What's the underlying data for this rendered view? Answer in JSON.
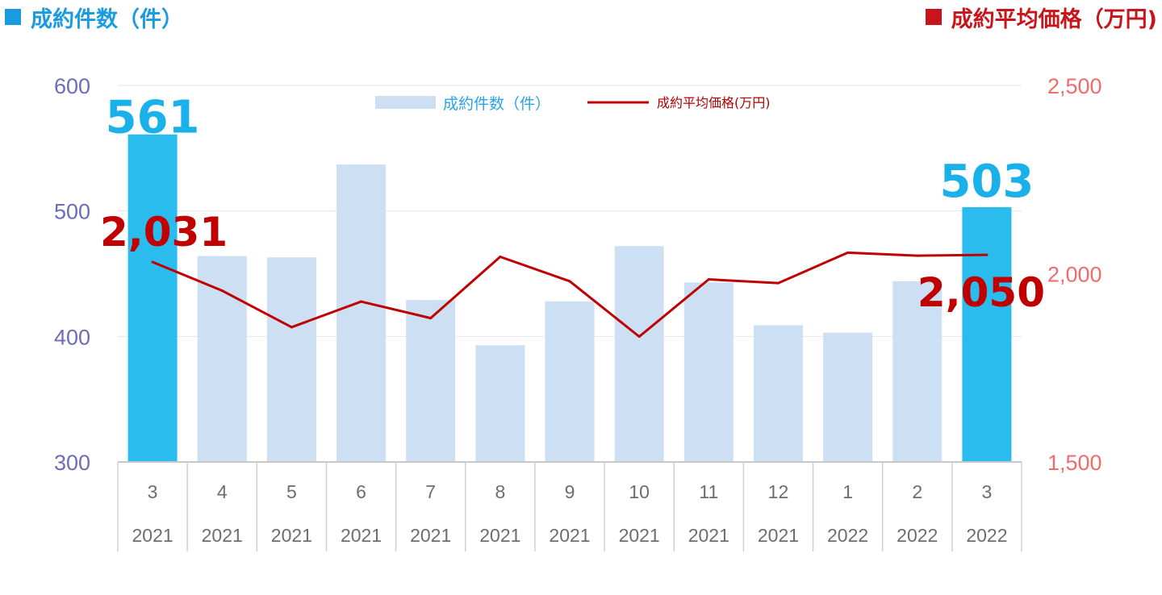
{
  "titles": {
    "left": "成約件数（件）",
    "right": "成約平均価格（万円)"
  },
  "chart_data": {
    "type": "bar",
    "categories": [
      {
        "month": "3",
        "year": "2021"
      },
      {
        "month": "4",
        "year": "2021"
      },
      {
        "month": "5",
        "year": "2021"
      },
      {
        "month": "6",
        "year": "2021"
      },
      {
        "month": "7",
        "year": "2021"
      },
      {
        "month": "8",
        "year": "2021"
      },
      {
        "month": "9",
        "year": "2021"
      },
      {
        "month": "10",
        "year": "2021"
      },
      {
        "month": "11",
        "year": "2021"
      },
      {
        "month": "12",
        "year": "2021"
      },
      {
        "month": "1",
        "year": "2022"
      },
      {
        "month": "2",
        "year": "2022"
      },
      {
        "month": "3",
        "year": "2022"
      }
    ],
    "series": [
      {
        "name": "成約件数（件）",
        "type": "bar",
        "axis": "left",
        "values": [
          561,
          464,
          463,
          537,
          429,
          393,
          428,
          472,
          443,
          409,
          403,
          444,
          503
        ],
        "highlight_indices": [
          0,
          12
        ],
        "color": "#cddff3",
        "highlight_color": "#2bbcee"
      },
      {
        "name": "成約平均価格(万円)",
        "type": "line",
        "axis": "right",
        "values": [
          2031,
          1955,
          1858,
          1926,
          1882,
          2045,
          1980,
          1833,
          1985,
          1975,
          2056,
          2048,
          2050
        ],
        "color": "#c00000"
      }
    ],
    "y_left": {
      "min": 300,
      "max": 600,
      "ticks": [
        "300",
        "400",
        "500",
        "600"
      ],
      "tick_values": [
        300,
        400,
        500,
        600
      ]
    },
    "y_right": {
      "min": 1500,
      "max": 2500,
      "ticks": [
        "1,500",
        "2,000",
        "2,500"
      ],
      "tick_values": [
        1500,
        2000,
        2500
      ]
    },
    "callouts": {
      "count_first": "561",
      "count_last": "503",
      "price_first": "2,031",
      "price_last": "2,050"
    },
    "grid": true,
    "legend": "top-center"
  }
}
